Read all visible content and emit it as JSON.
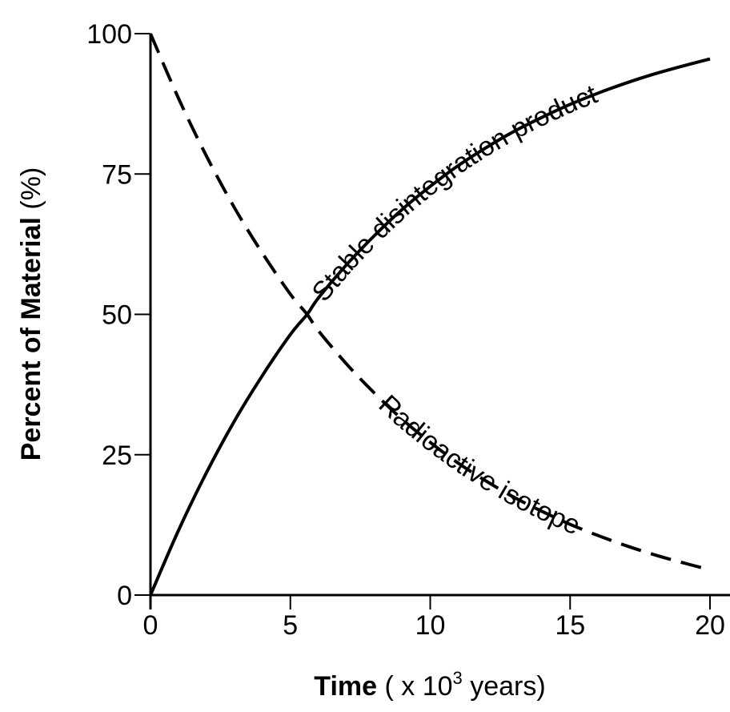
{
  "chart_data": {
    "type": "line",
    "xlabel": {
      "bold": "Time",
      "pre": " ( x 10",
      "sup": "3",
      "post": " years)"
    },
    "ylabel": {
      "bold": "Percent of Material",
      "post": " (%)"
    },
    "xlim": [
      0,
      20
    ],
    "ylim": [
      0,
      100
    ],
    "x_ticks": [
      0,
      5,
      10,
      15,
      20
    ],
    "y_ticks": [
      0,
      25,
      50,
      75,
      100
    ],
    "x_tick_labels": [
      "0",
      "5",
      "10",
      "15",
      "20"
    ],
    "y_tick_labels": [
      "0",
      "25",
      "50",
      "75",
      "100"
    ],
    "grid": false,
    "legend": "none",
    "series": [
      {
        "name": "Stable disintegration product",
        "style": "solid",
        "x": [
          0,
          1,
          2,
          3,
          4,
          5,
          5.6,
          6,
          7,
          8,
          9,
          10,
          11,
          12,
          13,
          14,
          15,
          16,
          17,
          18,
          19,
          20
        ],
        "y": [
          0,
          11.5,
          21.8,
          31.0,
          39.1,
          46.4,
          50.0,
          52.9,
          58.8,
          64.0,
          68.7,
          72.8,
          76.5,
          79.7,
          82.6,
          85.1,
          87.4,
          89.4,
          91.2,
          92.8,
          94.2,
          95.5
        ]
      },
      {
        "name": "Radioactive isotope",
        "style": "dashed",
        "x": [
          0,
          1,
          2,
          3,
          4,
          5,
          5.6,
          6,
          7,
          8,
          9,
          10,
          11,
          12,
          13,
          14,
          15,
          16,
          17,
          18,
          19,
          20
        ],
        "y": [
          100,
          88.5,
          78.2,
          69.0,
          60.9,
          53.6,
          50.0,
          47.1,
          41.2,
          36.0,
          31.3,
          27.2,
          23.5,
          20.3,
          17.4,
          14.9,
          12.6,
          10.6,
          8.8,
          7.2,
          5.8,
          4.5
        ]
      }
    ]
  }
}
